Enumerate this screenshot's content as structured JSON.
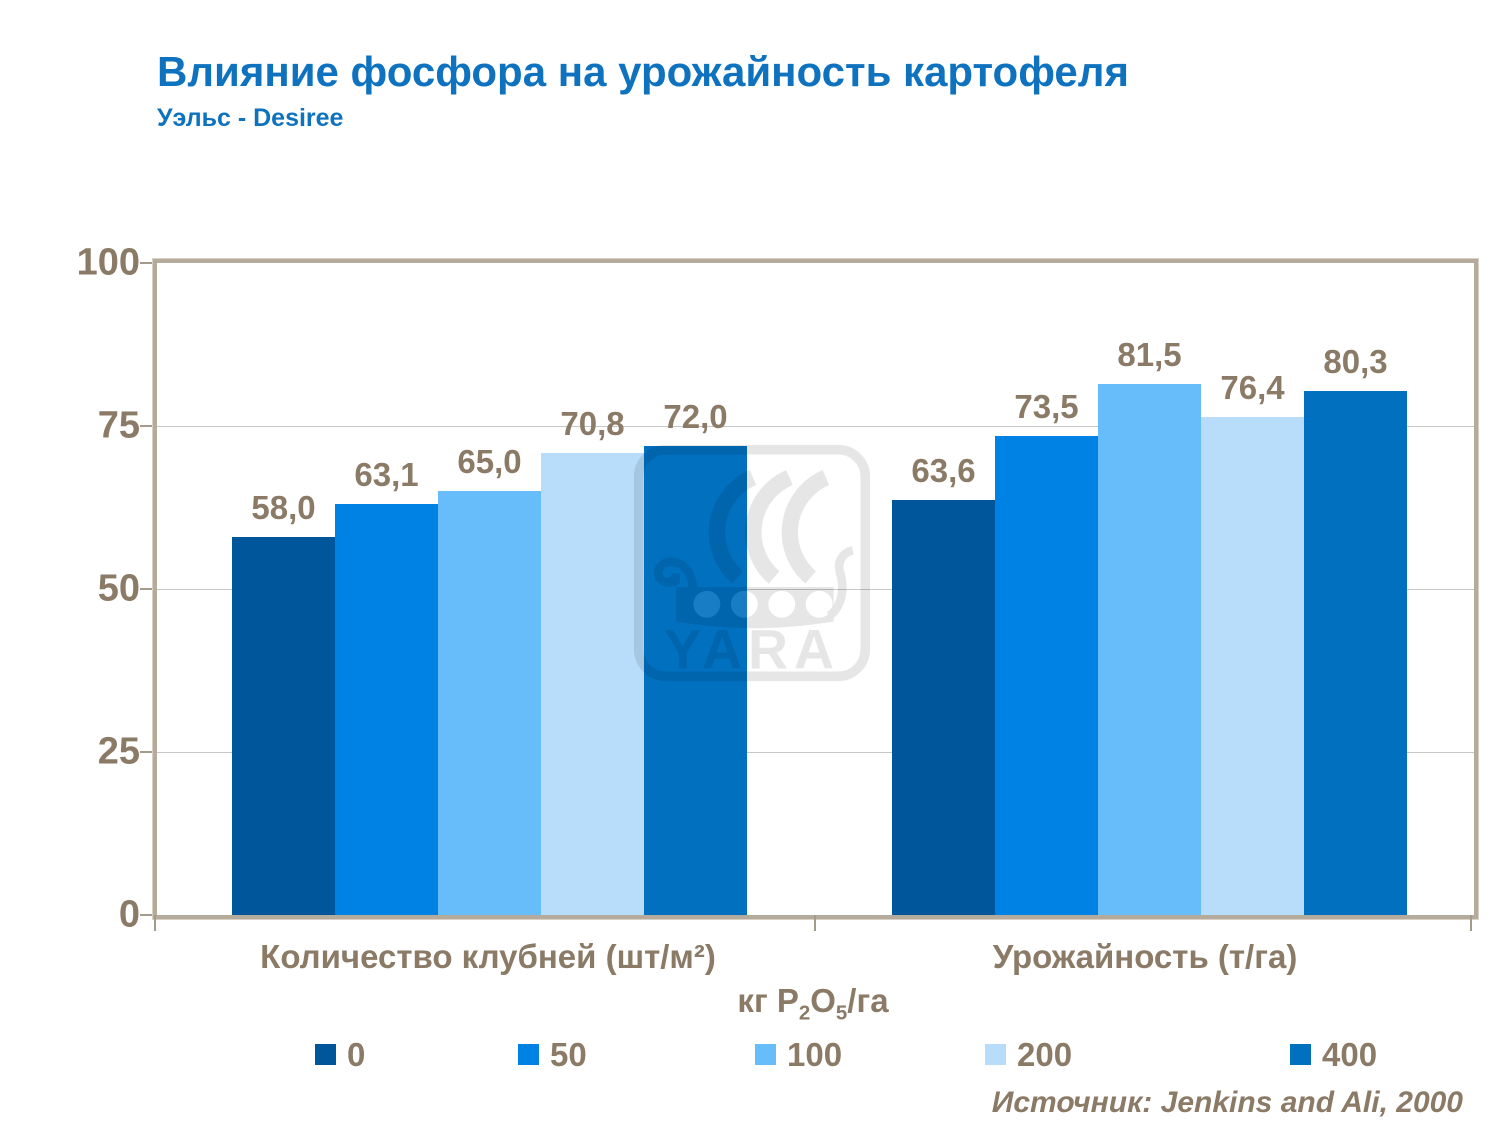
{
  "header": {
    "title": "Влияние фосфора на урожайность картофеля",
    "subtitle": "Уэльс - Desiree"
  },
  "source_note": "Источник: Jenkins and Ali, 2000",
  "watermark": {
    "name": "yara-logo",
    "text": "YARA"
  },
  "colors": {
    "title_blue": "#0E72BF",
    "axis_text_brown": "#8A7A66",
    "frame_tan": "#B5AB9D",
    "gridline_grey": "#C7C7C7"
  },
  "chart_data": {
    "type": "bar",
    "title": "Влияние фосфора на урожайность картофеля",
    "subtitle": "Уэльс - Desiree",
    "categories": [
      "Количество клубней (шт/м²)",
      "Урожайность (т/га)"
    ],
    "series": [
      {
        "name": "0",
        "color": "#00569B",
        "values": [
          58.0,
          63.6
        ]
      },
      {
        "name": "50",
        "color": "#0082E5",
        "values": [
          63.1,
          73.5
        ]
      },
      {
        "name": "100",
        "color": "#66BDFA",
        "values": [
          65.0,
          81.5
        ]
      },
      {
        "name": "200",
        "color": "#B8DDFB",
        "values": [
          70.8,
          76.4
        ]
      },
      {
        "name": "400",
        "color": "#0070BF",
        "values": [
          72.0,
          80.3
        ]
      }
    ],
    "value_label_decimal_separator": ",",
    "xlabel_parts": [
      "кг P",
      "2",
      "O",
      "5",
      "/га"
    ],
    "ylabel": "",
    "ylim": [
      0,
      100
    ],
    "yticks": [
      0,
      25,
      50,
      75,
      100
    ],
    "grid": true,
    "legend_position": "bottom",
    "legend_title": "кг P2O5/га"
  }
}
